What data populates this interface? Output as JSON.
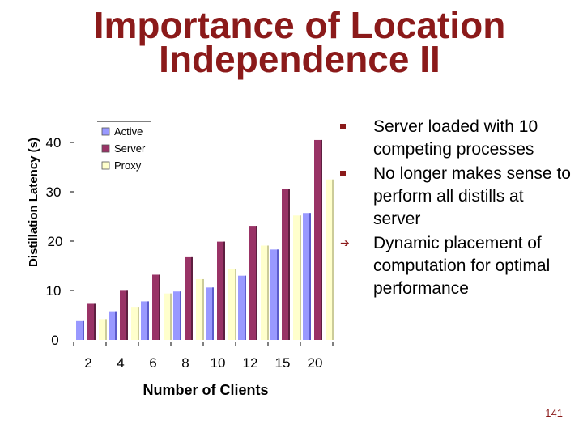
{
  "slide": {
    "title_line1": "Importance of Location",
    "title_line2": "Independence II",
    "page_number": "141"
  },
  "bullets": [
    {
      "text": "Server loaded with 10 competing processes",
      "marker": "square"
    },
    {
      "text": "No longer makes sense to perform all distills at server",
      "marker": "square"
    },
    {
      "text": "Dynamic placement of computation for optimal performance",
      "marker": "arrow"
    }
  ],
  "colors": {
    "title": "#8b1a1a",
    "active": "#9999ff",
    "server": "#993366",
    "proxy": "#ffffcc"
  },
  "chart_data": {
    "type": "bar",
    "title": "",
    "xlabel": "Number of Clients",
    "ylabel": "Distillation Latency (s)",
    "categories": [
      "2",
      "4",
      "6",
      "8",
      "10",
      "12",
      "15",
      "20"
    ],
    "ylim": [
      0,
      40
    ],
    "yticks": [
      "0",
      "10",
      "20",
      "30",
      "40"
    ],
    "legend_position": "top-left",
    "series": [
      {
        "name": "Active",
        "color": "#9999ff",
        "values": [
          3.8,
          5.8,
          7.8,
          9.8,
          10.6,
          13,
          18.3,
          25.7
        ]
      },
      {
        "name": "Server",
        "color": "#993366",
        "values": [
          7.3,
          10.1,
          13.2,
          16.9,
          19.9,
          23.1,
          30.5,
          40.5
        ]
      },
      {
        "name": "Proxy",
        "color": "#ffffcc",
        "values": [
          4.2,
          6.7,
          9.4,
          12.3,
          14.3,
          19.1,
          25.2,
          32.5
        ]
      }
    ]
  }
}
